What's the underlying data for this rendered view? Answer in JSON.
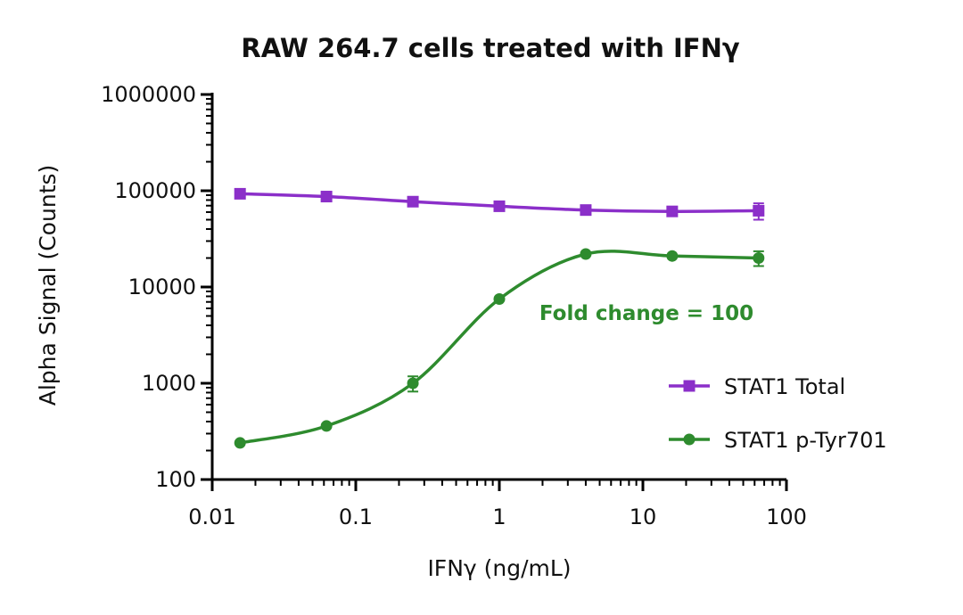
{
  "chart_data": {
    "type": "line",
    "title": "RAW 264.7 cells treated with IFNγ",
    "xlabel": "IFNγ (ng/mL)",
    "ylabel": "Alpha Signal (Counts)",
    "x_scale": "log",
    "y_scale": "log",
    "xlim": [
      0.01,
      100
    ],
    "ylim": [
      100,
      1000000
    ],
    "x_ticks": [
      0.01,
      0.1,
      1,
      10,
      100
    ],
    "x_tick_labels": [
      "0.01",
      "0.1",
      "1",
      "10",
      "100"
    ],
    "y_ticks": [
      100,
      1000,
      10000,
      100000,
      1000000
    ],
    "y_tick_labels": [
      "100",
      "1000",
      "10000",
      "100000",
      "1000000"
    ],
    "grid": false,
    "legend_position": "right",
    "series": [
      {
        "name": "STAT1 Total",
        "color": "#8b2fc9",
        "marker": "square",
        "x": [
          0.015625,
          0.0625,
          0.25,
          1,
          4,
          16,
          64
        ],
        "y": [
          93000,
          87000,
          77000,
          69000,
          63000,
          61000,
          62000
        ],
        "error": [
          0,
          0,
          0,
          0,
          0,
          0,
          12000
        ]
      },
      {
        "name": "STAT1 p-Tyr701",
        "color": "#2e8b2e",
        "marker": "circle",
        "x": [
          0.015625,
          0.0625,
          0.25,
          1,
          4,
          16,
          64
        ],
        "y": [
          240,
          360,
          1000,
          7500,
          22000,
          21000,
          20000
        ],
        "error": [
          0,
          0,
          180,
          0,
          0,
          0,
          3500
        ]
      }
    ],
    "annotations": [
      {
        "text": "Fold change = 100",
        "color": "#2e8b2e"
      }
    ]
  }
}
